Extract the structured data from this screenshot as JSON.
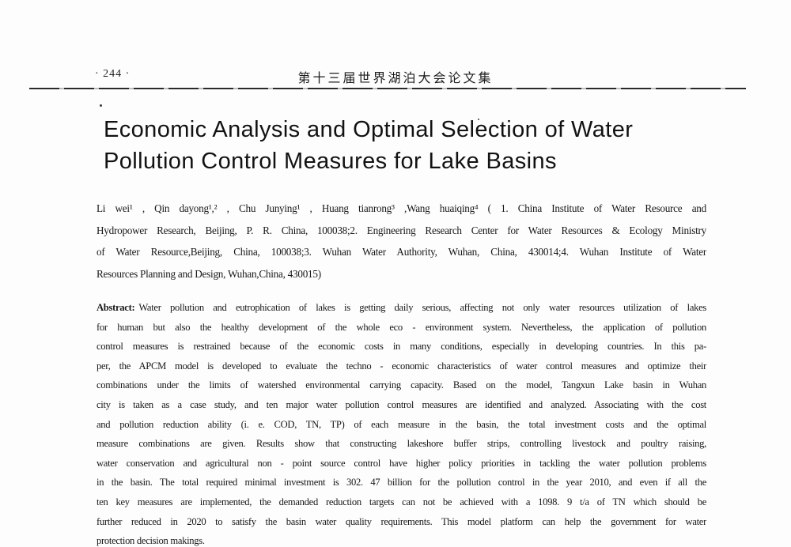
{
  "colors": {
    "paper": "#fdfdfd",
    "ink": "#1c1c1c"
  },
  "header": {
    "page_number": "· 244 ·",
    "proceedings_title": "第十三届世界湖泊大会论文集"
  },
  "title": {
    "lines": [
      "Economic Analysis and Optimal Selection of Water",
      "Pollution Control Measures for Lake Basins"
    ]
  },
  "authors": {
    "lines": [
      "Li wei¹ , Qin dayong¹,² , Chu Junying¹ , Huang tianrong³ ,Wang huaiqing⁴ ( 1. China Institute of Water Resource and",
      "Hydropower Research, Beijing, P. R. China, 100038;2. Engineering Research Center for Water Resources & Ecology Ministry",
      "of Water Resource,Beijing, China, 100038;3. Wuhan Water Authority, Wuhan, China, 430014;4. Wuhan Institute of Water",
      "Resources Planning and Design, Wuhan,China, 430015)"
    ]
  },
  "abstract": {
    "label": "Abstract:",
    "lines": [
      "Water pollution and eutrophication of lakes is getting daily serious, affecting not only water resources utilization of lakes",
      "for human but also the healthy development of the whole eco - environment system. Nevertheless, the application of pollution",
      "control measures is restrained because of the economic costs in many conditions, especially in developing countries. In this pa-",
      "per, the APCM model is developed to evaluate the techno - economic characteristics of water control measures and optimize their",
      "combinations under the limits of watershed environmental carrying capacity. Based on the model, Tangxun Lake basin in Wuhan",
      "city is taken as a case study, and ten major water pollution control measures are identified and analyzed. Associating with the cost",
      "and pollution reduction ability (i. e. COD, TN, TP) of each measure in the basin, the total investment costs and the optimal",
      "measure combinations are given. Results show that constructing lakeshore buffer strips, controlling livestock and poultry raising,",
      "water conservation and agricultural non - point source control have higher policy priorities in tackling the water pollution problems",
      "in the basin. The total required minimal investment is 302. 47 billion for the pollution control in the year 2010, and even if all the",
      "ten key measures are implemented, the demanded reduction targets can not be achieved with a 1098. 9 t/a of TN which should be",
      "further reduced in 2020 to satisfy the basin water quality requirements. This model platform can help the government for water",
      "protection decision makings."
    ]
  }
}
